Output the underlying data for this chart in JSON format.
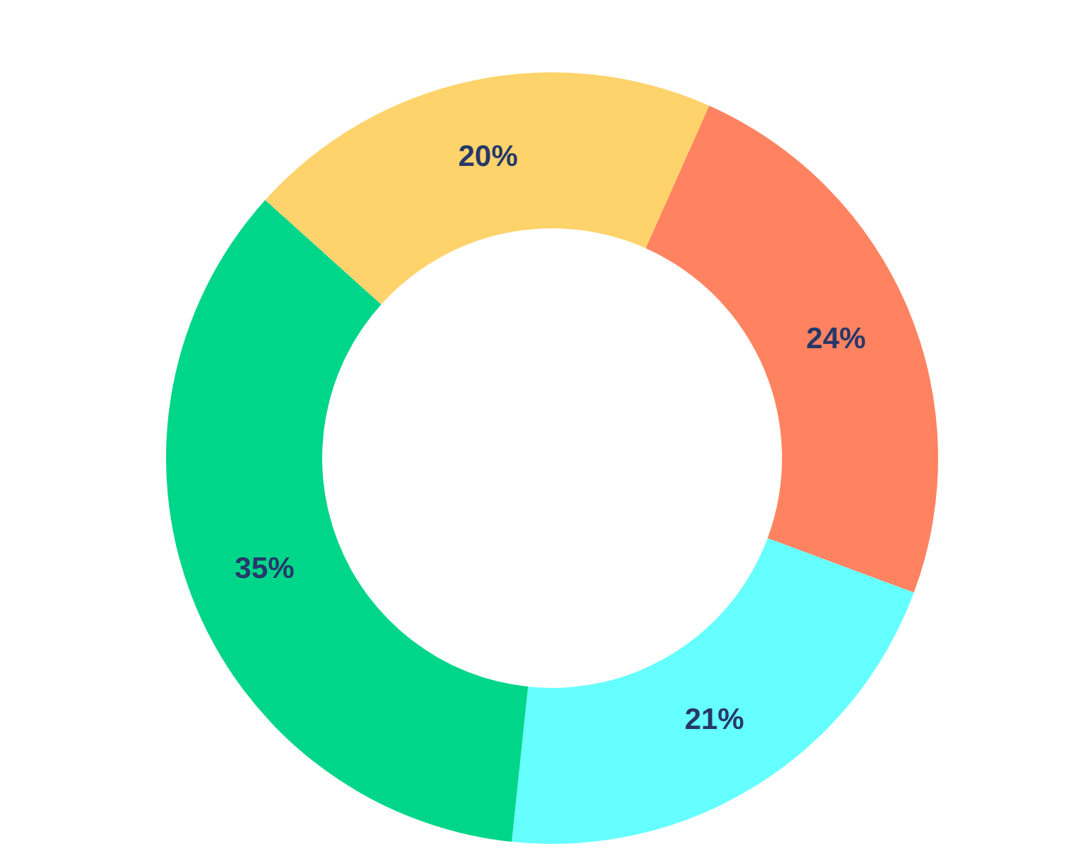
{
  "chart_data": {
    "type": "donut",
    "categories": [
      null,
      null,
      null,
      null
    ],
    "values": [
      24,
      21,
      35,
      20
    ],
    "colors": [
      "#ff8360",
      "#66ffff",
      "#00d68a",
      "#ffd36b"
    ],
    "value_labels": [
      "24%",
      "21%",
      "35%",
      "20%"
    ]
  }
}
